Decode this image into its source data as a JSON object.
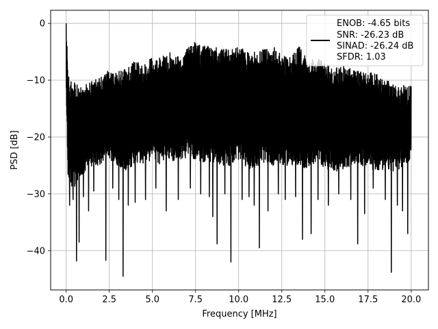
{
  "chart_data": {
    "type": "line",
    "title": "",
    "xlabel": "Frequency [MHz]",
    "ylabel": "PSD [dB]",
    "xlim": [
      -0.9,
      21.0
    ],
    "ylim": [
      -46.9,
      2.3
    ],
    "x_ticks": [
      0.0,
      2.5,
      5.0,
      7.5,
      10.0,
      12.5,
      15.0,
      17.5,
      20.0
    ],
    "x_tick_labels": [
      "0.0",
      "2.5",
      "5.0",
      "7.5",
      "10.0",
      "12.5",
      "15.0",
      "17.5",
      "20.0"
    ],
    "y_ticks": [
      0,
      -10,
      -20,
      -30,
      -40
    ],
    "y_tick_labels": [
      "0",
      "−10",
      "−20",
      "−30",
      "−40"
    ],
    "grid": true,
    "legend_position": "top-right",
    "line_color": "#000000",
    "series": [
      {
        "name": "ENOB: -4.65 bits\nSNR: -26.23 dB\nSINAD: -26.24 dB\nSFDR: 1.03",
        "legend_lines": [
          "ENOB: -4.65 bits",
          "SNR: -26.23 dB",
          "SINAD: -26.24 dB",
          "SFDR: 1.03"
        ],
        "envelope": {
          "x": [
            0.0,
            0.05,
            0.1,
            0.3,
            0.5,
            1.0,
            1.5,
            2.0,
            2.5,
            3.0,
            3.5,
            4.0,
            4.5,
            5.0,
            5.5,
            6.0,
            6.5,
            7.0,
            7.5,
            8.0,
            8.5,
            9.0,
            9.5,
            10.0,
            10.5,
            11.0,
            11.5,
            12.0,
            12.5,
            13.0,
            13.5,
            14.0,
            14.5,
            15.0,
            15.5,
            16.0,
            16.5,
            17.0,
            17.5,
            18.0,
            18.5,
            19.0,
            19.5,
            20.0
          ],
          "upper": [
            0.0,
            -3.0,
            -9.0,
            -10.0,
            -10.5,
            -11.0,
            -10.0,
            -9.5,
            -8.0,
            -8.5,
            -8.0,
            -6.0,
            -7.5,
            -5.5,
            -6.0,
            -5.0,
            -5.5,
            -4.5,
            -3.0,
            -4.0,
            -3.5,
            -4.5,
            -4.5,
            -4.0,
            -5.0,
            -5.0,
            -4.5,
            -4.0,
            -5.5,
            -6.0,
            -4.0,
            -6.5,
            -6.0,
            -7.0,
            -7.5,
            -7.5,
            -8.0,
            -8.5,
            -8.5,
            -9.0,
            -9.5,
            -10.5,
            -10.5,
            -11.0
          ],
          "lower": [
            -12.0,
            -20.0,
            -27.0,
            -29.0,
            -29.0,
            -27.0,
            -25.0,
            -25.0,
            -24.0,
            -25.0,
            -26.0,
            -24.5,
            -25.0,
            -24.0,
            -25.0,
            -24.0,
            -24.5,
            -23.5,
            -24.0,
            -24.5,
            -24.5,
            -25.0,
            -25.0,
            -24.0,
            -25.5,
            -25.5,
            -24.5,
            -25.0,
            -25.0,
            -25.0,
            -25.5,
            -25.5,
            -24.5,
            -25.5,
            -26.0,
            -26.0,
            -25.0,
            -25.0,
            -25.5,
            -26.0,
            -26.0,
            -26.0,
            -25.5,
            -24.0
          ]
        },
        "dips": [
          {
            "x": 0.2,
            "y": -32.0
          },
          {
            "x": 0.4,
            "y": -31.0
          },
          {
            "x": 0.6,
            "y": -41.8
          },
          {
            "x": 0.75,
            "y": -38.5
          },
          {
            "x": 1.0,
            "y": -30.5
          },
          {
            "x": 1.3,
            "y": -33.0
          },
          {
            "x": 1.6,
            "y": -29.5
          },
          {
            "x": 2.3,
            "y": -41.7
          },
          {
            "x": 2.7,
            "y": -29.0
          },
          {
            "x": 3.05,
            "y": -31.0
          },
          {
            "x": 3.3,
            "y": -44.5
          },
          {
            "x": 3.6,
            "y": -32.0
          },
          {
            "x": 4.0,
            "y": -31.5
          },
          {
            "x": 4.6,
            "y": -31.0
          },
          {
            "x": 5.2,
            "y": -29.0
          },
          {
            "x": 5.8,
            "y": -33.0
          },
          {
            "x": 6.5,
            "y": -31.0
          },
          {
            "x": 7.2,
            "y": -29.0
          },
          {
            "x": 7.8,
            "y": -30.0
          },
          {
            "x": 8.3,
            "y": -30.5
          },
          {
            "x": 8.5,
            "y": -34.0
          },
          {
            "x": 8.75,
            "y": -38.8
          },
          {
            "x": 9.2,
            "y": -30.0
          },
          {
            "x": 9.55,
            "y": -42.0
          },
          {
            "x": 10.2,
            "y": -31.0
          },
          {
            "x": 10.6,
            "y": -30.5
          },
          {
            "x": 10.9,
            "y": -32.0
          },
          {
            "x": 11.2,
            "y": -39.5
          },
          {
            "x": 11.7,
            "y": -33.0
          },
          {
            "x": 12.3,
            "y": -30.0
          },
          {
            "x": 12.7,
            "y": -31.0
          },
          {
            "x": 13.3,
            "y": -30.5
          },
          {
            "x": 13.7,
            "y": -38.0
          },
          {
            "x": 14.2,
            "y": -37.0
          },
          {
            "x": 14.6,
            "y": -31.0
          },
          {
            "x": 15.2,
            "y": -32.0
          },
          {
            "x": 15.8,
            "y": -30.0
          },
          {
            "x": 16.5,
            "y": -31.0
          },
          {
            "x": 16.9,
            "y": -38.8
          },
          {
            "x": 17.3,
            "y": -33.5
          },
          {
            "x": 17.8,
            "y": -29.0
          },
          {
            "x": 18.5,
            "y": -31.0
          },
          {
            "x": 18.85,
            "y": -43.8
          },
          {
            "x": 19.2,
            "y": -32.0
          },
          {
            "x": 19.5,
            "y": -33.0
          },
          {
            "x": 19.8,
            "y": -37.0
          }
        ]
      }
    ]
  }
}
